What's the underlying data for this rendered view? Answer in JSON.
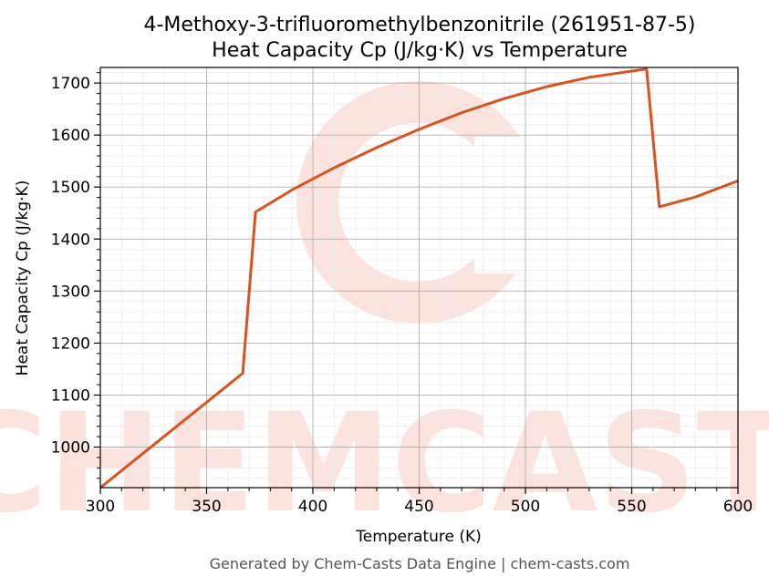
{
  "chart_data": {
    "type": "line",
    "title": "4-Methoxy-3-trifluoromethylbenzonitrile (261951-87-5)",
    "subtitle": "Heat Capacity Cp (J/kg·K) vs Temperature",
    "xlabel": "Temperature (K)",
    "ylabel": "Heat Capacity Cp (J/kg·K)",
    "xlim": [
      300,
      600
    ],
    "ylim": [
      922,
      1730
    ],
    "x_ticks": [
      300,
      350,
      400,
      450,
      500,
      550,
      600
    ],
    "y_ticks": [
      1000,
      1100,
      1200,
      1300,
      1400,
      1500,
      1600,
      1700
    ],
    "grid": true,
    "line_color": "#d9531e",
    "series": [
      {
        "points": [
          [
            300,
            922
          ],
          [
            367,
            1142
          ],
          [
            373,
            1452
          ],
          [
            390,
            1494
          ],
          [
            410,
            1537
          ],
          [
            430,
            1576
          ],
          [
            450,
            1611
          ],
          [
            470,
            1643
          ],
          [
            490,
            1670
          ],
          [
            510,
            1693
          ],
          [
            530,
            1711
          ],
          [
            557,
            1727
          ],
          [
            563,
            1462
          ],
          [
            580,
            1481
          ],
          [
            600,
            1512
          ]
        ]
      }
    ]
  },
  "watermark": {
    "text": "CHEMCASTS",
    "color": "#fde3de"
  },
  "footer": "Generated by Chem-Casts Data Engine | chem-casts.com"
}
